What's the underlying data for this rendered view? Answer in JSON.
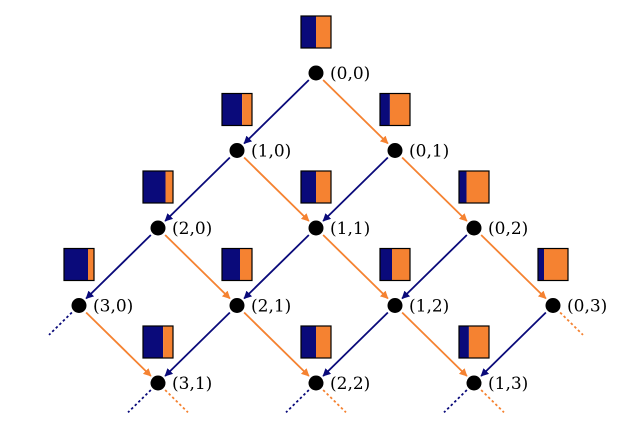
{
  "colors": {
    "blue": "#0a0a7a",
    "orange": "#f58231",
    "node": "#000000",
    "box_border": "#000000"
  },
  "nodes": [
    {
      "id": "0-0",
      "i": 0,
      "j": 0,
      "label": "(0,0)",
      "blue_fraction": 0.5
    },
    {
      "id": "1-0",
      "i": 1,
      "j": 0,
      "label": "(1,0)",
      "blue_fraction": 0.67
    },
    {
      "id": "0-1",
      "i": 0,
      "j": 1,
      "label": "(0,1)",
      "blue_fraction": 0.33
    },
    {
      "id": "2-0",
      "i": 2,
      "j": 0,
      "label": "(2,0)",
      "blue_fraction": 0.75
    },
    {
      "id": "1-1",
      "i": 1,
      "j": 1,
      "label": "(1,1)",
      "blue_fraction": 0.5
    },
    {
      "id": "0-2",
      "i": 0,
      "j": 2,
      "label": "(0,2)",
      "blue_fraction": 0.25
    },
    {
      "id": "3-0",
      "i": 3,
      "j": 0,
      "label": "(3,0)",
      "blue_fraction": 0.8
    },
    {
      "id": "2-1",
      "i": 2,
      "j": 1,
      "label": "(2,1)",
      "blue_fraction": 0.6
    },
    {
      "id": "1-2",
      "i": 1,
      "j": 2,
      "label": "(1,2)",
      "blue_fraction": 0.4
    },
    {
      "id": "0-3",
      "i": 0,
      "j": 3,
      "label": "(0,3)",
      "blue_fraction": 0.2
    },
    {
      "id": "3-1",
      "i": 3,
      "j": 1,
      "label": "(3,1)",
      "blue_fraction": 0.67
    },
    {
      "id": "2-2",
      "i": 2,
      "j": 2,
      "label": "(2,2)",
      "blue_fraction": 0.5
    },
    {
      "id": "1-3",
      "i": 1,
      "j": 3,
      "label": "(1,3)",
      "blue_fraction": 0.33
    }
  ],
  "edges": [
    {
      "from": "0-0",
      "to": "1-0",
      "color": "blue"
    },
    {
      "from": "0-0",
      "to": "0-1",
      "color": "orange"
    },
    {
      "from": "1-0",
      "to": "2-0",
      "color": "blue"
    },
    {
      "from": "1-0",
      "to": "1-1",
      "color": "orange"
    },
    {
      "from": "0-1",
      "to": "1-1",
      "color": "blue"
    },
    {
      "from": "0-1",
      "to": "0-2",
      "color": "orange"
    },
    {
      "from": "2-0",
      "to": "3-0",
      "color": "blue"
    },
    {
      "from": "2-0",
      "to": "2-1",
      "color": "orange"
    },
    {
      "from": "1-1",
      "to": "2-1",
      "color": "blue"
    },
    {
      "from": "1-1",
      "to": "1-2",
      "color": "orange"
    },
    {
      "from": "0-2",
      "to": "1-2",
      "color": "blue"
    },
    {
      "from": "0-2",
      "to": "0-3",
      "color": "orange"
    },
    {
      "from": "3-0",
      "to": "3-1",
      "color": "orange"
    },
    {
      "from": "2-1",
      "to": "3-1",
      "color": "blue"
    },
    {
      "from": "2-1",
      "to": "2-2",
      "color": "orange"
    },
    {
      "from": "1-2",
      "to": "2-2",
      "color": "blue"
    },
    {
      "from": "1-2",
      "to": "1-3",
      "color": "orange"
    },
    {
      "from": "0-3",
      "to": "1-3",
      "color": "blue"
    }
  ],
  "continuations": [
    {
      "from": "3-0",
      "color": "blue",
      "direction": "down-left"
    },
    {
      "from": "0-3",
      "color": "orange",
      "direction": "down-right"
    },
    {
      "from": "3-1",
      "color": "blue",
      "direction": "down-left"
    },
    {
      "from": "3-1",
      "color": "orange",
      "direction": "down-right"
    },
    {
      "from": "2-2",
      "color": "blue",
      "direction": "down-left"
    },
    {
      "from": "2-2",
      "color": "orange",
      "direction": "down-right"
    },
    {
      "from": "1-3",
      "color": "blue",
      "direction": "down-left"
    },
    {
      "from": "1-3",
      "color": "orange",
      "direction": "down-right"
    }
  ]
}
